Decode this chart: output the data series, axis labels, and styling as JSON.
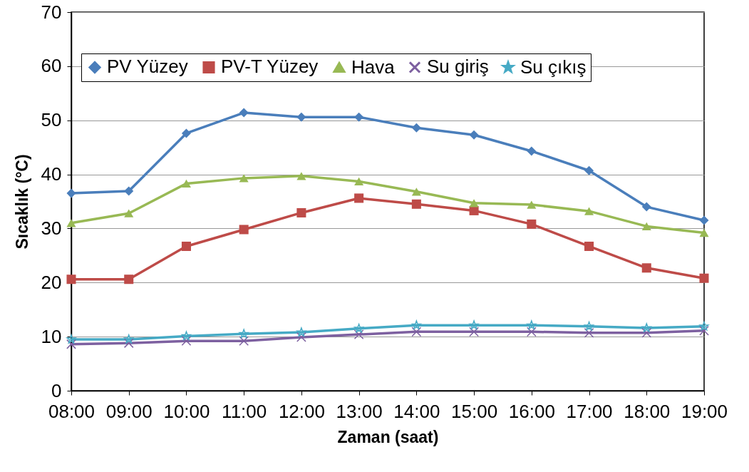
{
  "chart_data": {
    "type": "line",
    "xlabel": "Zaman (saat)",
    "ylabel": "Sıcaklık (°C)",
    "categories": [
      "08:00",
      "09:00",
      "10:00",
      "11:00",
      "12:00",
      "13:00",
      "14:00",
      "15:00",
      "16:00",
      "17:00",
      "18:00",
      "19:00"
    ],
    "ylim": [
      0,
      70
    ],
    "yticks": [
      0,
      10,
      20,
      30,
      40,
      50,
      60,
      70
    ],
    "grid": "y",
    "legend": "top",
    "series": [
      {
        "name": "PV Yüzey",
        "color": "#4a7ebb",
        "marker": "diamond",
        "values": [
          36.5,
          36.9,
          47.6,
          51.4,
          50.6,
          50.6,
          48.6,
          47.3,
          44.3,
          40.7,
          34.0,
          31.5
        ]
      },
      {
        "name": "PV-T Yüzey",
        "color": "#be4b48",
        "marker": "square",
        "values": [
          20.6,
          20.6,
          26.7,
          29.8,
          32.9,
          35.6,
          34.5,
          33.3,
          30.8,
          26.7,
          22.7,
          20.8
        ]
      },
      {
        "name": "Hava",
        "color": "#98b954",
        "marker": "triangle",
        "values": [
          31.0,
          32.8,
          38.3,
          39.3,
          39.7,
          38.7,
          36.8,
          34.7,
          34.4,
          33.2,
          30.4,
          29.2
        ]
      },
      {
        "name": "Su giriş",
        "color": "#7d60a0",
        "marker": "cross",
        "values": [
          8.6,
          8.8,
          9.2,
          9.2,
          9.9,
          10.4,
          10.9,
          10.9,
          10.9,
          10.7,
          10.7,
          11.1
        ]
      },
      {
        "name": "Su çıkış",
        "color": "#46aac5",
        "marker": "star",
        "values": [
          9.5,
          9.5,
          10.1,
          10.5,
          10.8,
          11.5,
          12.1,
          12.1,
          12.1,
          11.9,
          11.6,
          11.9
        ]
      }
    ]
  }
}
